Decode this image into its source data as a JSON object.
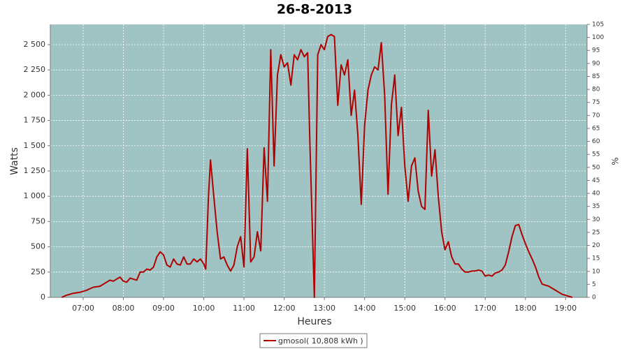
{
  "chart_data": {
    "type": "line",
    "title": "26-8-2013",
    "xlabel": "Heures",
    "ylabel": "Watts",
    "y2label": "%",
    "x": [
      "06:28",
      "06:35",
      "06:45",
      "06:55",
      "07:05",
      "07:15",
      "07:25",
      "07:35",
      "07:40",
      "07:45",
      "07:55",
      "08:00",
      "08:05",
      "08:10",
      "08:15",
      "08:20",
      "08:25",
      "08:30",
      "08:35",
      "08:40",
      "08:45",
      "08:50",
      "08:55",
      "09:00",
      "09:05",
      "09:10",
      "09:15",
      "09:20",
      "09:25",
      "09:30",
      "09:35",
      "09:40",
      "09:45",
      "09:50",
      "09:55",
      "10:00",
      "10:03",
      "10:07",
      "10:10",
      "10:15",
      "10:20",
      "10:25",
      "10:30",
      "10:35",
      "10:40",
      "10:45",
      "10:50",
      "10:55",
      "11:00",
      "11:05",
      "11:10",
      "11:15",
      "11:20",
      "11:25",
      "11:30",
      "11:35",
      "11:40",
      "11:45",
      "11:50",
      "11:55",
      "12:00",
      "12:05",
      "12:10",
      "12:15",
      "12:20",
      "12:25",
      "12:30",
      "12:35",
      "12:38",
      "12:45",
      "12:50",
      "12:55",
      "13:00",
      "13:05",
      "13:10",
      "13:15",
      "13:20",
      "13:25",
      "13:30",
      "13:35",
      "13:40",
      "13:45",
      "13:50",
      "13:55",
      "14:00",
      "14:05",
      "14:10",
      "14:15",
      "14:20",
      "14:25",
      "14:30",
      "14:35",
      "14:40",
      "14:45",
      "14:50",
      "14:55",
      "15:00",
      "15:05",
      "15:10",
      "15:15",
      "15:20",
      "15:25",
      "15:30",
      "15:35",
      "15:40",
      "15:45",
      "15:50",
      "15:55",
      "16:00",
      "16:05",
      "16:10",
      "16:15",
      "16:20",
      "16:25",
      "16:30",
      "16:35",
      "16:40",
      "16:45",
      "16:50",
      "16:55",
      "17:00",
      "17:05",
      "17:10",
      "17:15",
      "17:20",
      "17:25",
      "17:30",
      "17:35",
      "17:40",
      "17:45",
      "17:50",
      "17:55",
      "18:00",
      "18:05",
      "18:10",
      "18:15",
      "18:20",
      "18:25",
      "18:30",
      "18:35",
      "18:40",
      "18:45",
      "18:50",
      "18:55",
      "19:00",
      "19:05",
      "19:10"
    ],
    "series": [
      {
        "name": "gmosol( 10,808 kWh )",
        "color": "#b00000",
        "values": [
          0,
          20,
          40,
          50,
          70,
          100,
          110,
          150,
          170,
          160,
          200,
          160,
          150,
          190,
          180,
          170,
          250,
          250,
          280,
          270,
          300,
          400,
          450,
          420,
          320,
          300,
          380,
          330,
          320,
          400,
          330,
          330,
          380,
          350,
          380,
          330,
          280,
          1000,
          1360,
          1000,
          650,
          380,
          400,
          320,
          260,
          320,
          500,
          600,
          300,
          1470,
          350,
          400,
          650,
          460,
          1480,
          950,
          2450,
          1300,
          2200,
          2400,
          2280,
          2320,
          2100,
          2400,
          2350,
          2450,
          2380,
          2420,
          1600,
          0,
          2400,
          2500,
          2450,
          2580,
          2600,
          2580,
          1900,
          2300,
          2200,
          2350,
          1800,
          2050,
          1600,
          920,
          1700,
          2050,
          2200,
          2280,
          2250,
          2520,
          2000,
          1020,
          1900,
          2200,
          1600,
          1880,
          1300,
          950,
          1300,
          1380,
          1050,
          900,
          870,
          1850,
          1200,
          1460,
          1000,
          650,
          470,
          550,
          400,
          330,
          330,
          280,
          250,
          250,
          260,
          260,
          270,
          260,
          210,
          220,
          210,
          240,
          250,
          270,
          320,
          450,
          600,
          710,
          720,
          620,
          530,
          450,
          380,
          300,
          200,
          130,
          120,
          110,
          90,
          70,
          50,
          30,
          20,
          10,
          0
        ]
      }
    ],
    "xlim": [
      "06:11",
      "19:32"
    ],
    "xticks": [
      "07:00",
      "08:00",
      "09:00",
      "10:00",
      "11:00",
      "12:00",
      "13:00",
      "14:00",
      "15:00",
      "16:00",
      "17:00",
      "18:00",
      "19:00"
    ],
    "ylim": [
      0,
      2700
    ],
    "yticks": [
      0,
      250,
      500,
      750,
      {
        "value": 1000,
        "label": "1 000"
      },
      {
        "value": 1250,
        "label": "1 250"
      },
      {
        "value": 1500,
        "label": "1 500"
      },
      {
        "value": 1750,
        "label": "1 750"
      },
      {
        "value": 2000,
        "label": "2 000"
      },
      {
        "value": 2250,
        "label": "2 250"
      },
      {
        "value": 2500,
        "label": "2 500"
      }
    ],
    "y2lim": [
      0,
      105
    ],
    "y2ticks": [
      0,
      5,
      10,
      15,
      20,
      25,
      30,
      35,
      40,
      45,
      50,
      55,
      60,
      65,
      70,
      75,
      80,
      85,
      90,
      95,
      100,
      105
    ],
    "grid": true,
    "plot_background": "#a0c4c4",
    "legend": "bottom"
  }
}
